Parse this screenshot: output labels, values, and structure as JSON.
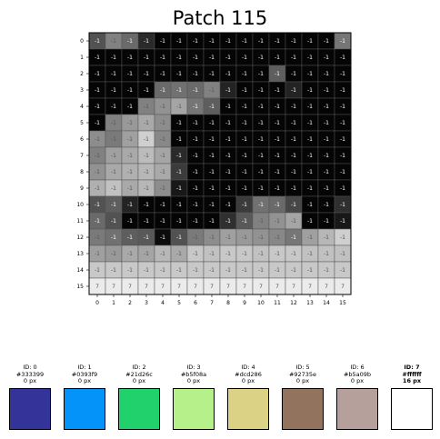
{
  "chart_data": {
    "type": "heatmap",
    "title": "Patch 115",
    "x_ticks": [
      "0",
      "1",
      "2",
      "3",
      "4",
      "5",
      "6",
      "7",
      "8",
      "9",
      "10",
      "11",
      "12",
      "13",
      "14",
      "15"
    ],
    "y_ticks": [
      "0",
      "1",
      "2",
      "3",
      "4",
      "5",
      "6",
      "7",
      "8",
      "9",
      "10",
      "11",
      "12",
      "13",
      "14",
      "15"
    ],
    "cell_labels": [
      [
        "-1",
        "-1",
        "-1",
        "-1",
        "-1",
        "-1",
        "-1",
        "-1",
        "-1",
        "-1",
        "-1",
        "-1",
        "-1",
        "-1",
        "-1",
        "-1"
      ],
      [
        "-1",
        "-1",
        "-1",
        "-1",
        "-1",
        "-1",
        "-1",
        "-1",
        "-1",
        "-1",
        "-1",
        "-1",
        "-1",
        "-1",
        "-1",
        "-1"
      ],
      [
        "-1",
        "-1",
        "-1",
        "-1",
        "-1",
        "-1",
        "-1",
        "-1",
        "-1",
        "-1",
        "-1",
        "-1",
        "-1",
        "-1",
        "-1",
        "-1"
      ],
      [
        "-1",
        "-1",
        "-1",
        "-1",
        "-1",
        "-1",
        "-1",
        "-1",
        "-1",
        "-1",
        "-1",
        "-1",
        "-1",
        "-1",
        "-1",
        "-1"
      ],
      [
        "-1",
        "-1",
        "-1",
        "-1",
        "-1",
        "-1",
        "-1",
        "-1",
        "-1",
        "-1",
        "-1",
        "-1",
        "-1",
        "-1",
        "-1",
        "-1"
      ],
      [
        "-1",
        "-1",
        "-1",
        "-1",
        "-1",
        "-1",
        "-1",
        "-1",
        "-1",
        "-1",
        "-1",
        "-1",
        "-1",
        "-1",
        "-1",
        "-1"
      ],
      [
        "-1",
        "-1",
        "-1",
        "-1",
        "-1",
        "-1",
        "-1",
        "-1",
        "-1",
        "-1",
        "-1",
        "-1",
        "-1",
        "-1",
        "-1",
        "-1"
      ],
      [
        "-1",
        "-1",
        "-1",
        "-1",
        "-1",
        "-1",
        "-1",
        "-1",
        "-1",
        "-1",
        "-1",
        "-1",
        "-1",
        "-1",
        "-1",
        "-1"
      ],
      [
        "-1",
        "-1",
        "-1",
        "-1",
        "-1",
        "-1",
        "-1",
        "-1",
        "-1",
        "-1",
        "-1",
        "-1",
        "-1",
        "-1",
        "-1",
        "-1"
      ],
      [
        "-1",
        "-1",
        "-1",
        "-1",
        "-1",
        "-1",
        "-1",
        "-1",
        "-1",
        "-1",
        "-1",
        "-1",
        "-1",
        "-1",
        "-1",
        "-1"
      ],
      [
        "-1",
        "-1",
        "-1",
        "-1",
        "-1",
        "-1",
        "-1",
        "-1",
        "-1",
        "-1",
        "-1",
        "-1",
        "-1",
        "-1",
        "-1",
        "-1"
      ],
      [
        "-1",
        "-1",
        "-1",
        "-1",
        "-1",
        "-1",
        "-1",
        "-1",
        "-1",
        "-1",
        "-1",
        "-1",
        "-1",
        "-1",
        "-1",
        "-1"
      ],
      [
        "-1",
        "-1",
        "-1",
        "-1",
        "-1",
        "-1",
        "-1",
        "-1",
        "-1",
        "-1",
        "-1",
        "-1",
        "-1",
        "-1",
        "-1",
        "-1"
      ],
      [
        "-1",
        "-1",
        "-1",
        "-1",
        "-1",
        "-1",
        "-1",
        "-1",
        "-1",
        "-1",
        "-1",
        "-1",
        "-1",
        "-1",
        "-1",
        "-1"
      ],
      [
        "-1",
        "-1",
        "-1",
        "-1",
        "-1",
        "-1",
        "-1",
        "-1",
        "-1",
        "-1",
        "-1",
        "-1",
        "-1",
        "-1",
        "-1",
        "-1"
      ],
      [
        "7",
        "7",
        "7",
        "7",
        "7",
        "7",
        "7",
        "7",
        "7",
        "7",
        "7",
        "7",
        "7",
        "7",
        "7",
        "7"
      ]
    ],
    "intensity": [
      [
        0.35,
        0.55,
        0.45,
        0.18,
        0.02,
        0.02,
        0.02,
        0.02,
        0.02,
        0.02,
        0.02,
        0.02,
        0.02,
        0.02,
        0.02,
        0.5
      ],
      [
        0.02,
        0.02,
        0.02,
        0.02,
        0.02,
        0.02,
        0.02,
        0.02,
        0.02,
        0.02,
        0.02,
        0.02,
        0.02,
        0.02,
        0.02,
        0.02
      ],
      [
        0.02,
        0.02,
        0.02,
        0.02,
        0.02,
        0.02,
        0.02,
        0.02,
        0.02,
        0.02,
        0.02,
        0.4,
        0.02,
        0.02,
        0.02,
        0.02
      ],
      [
        0.02,
        0.02,
        0.02,
        0.02,
        0.45,
        0.48,
        0.45,
        0.55,
        0.15,
        0.02,
        0.02,
        0.02,
        0.15,
        0.02,
        0.02,
        0.02
      ],
      [
        0.02,
        0.02,
        0.02,
        0.55,
        0.62,
        0.7,
        0.5,
        0.4,
        0.02,
        0.02,
        0.02,
        0.02,
        0.02,
        0.02,
        0.02,
        0.02
      ],
      [
        0.02,
        0.55,
        0.65,
        0.72,
        0.6,
        0.02,
        0.02,
        0.02,
        0.02,
        0.02,
        0.02,
        0.02,
        0.02,
        0.02,
        0.02,
        0.02
      ],
      [
        0.6,
        0.52,
        0.68,
        0.88,
        0.58,
        0.02,
        0.02,
        0.02,
        0.02,
        0.02,
        0.02,
        0.02,
        0.02,
        0.02,
        0.02,
        0.02
      ],
      [
        0.55,
        0.68,
        0.72,
        0.8,
        0.7,
        0.18,
        0.02,
        0.02,
        0.02,
        0.02,
        0.02,
        0.02,
        0.02,
        0.02,
        0.02,
        0.02
      ],
      [
        0.62,
        0.72,
        0.75,
        0.78,
        0.72,
        0.25,
        0.02,
        0.02,
        0.02,
        0.02,
        0.02,
        0.02,
        0.02,
        0.02,
        0.02,
        0.02
      ],
      [
        0.75,
        0.82,
        0.72,
        0.78,
        0.6,
        0.1,
        0.02,
        0.02,
        0.02,
        0.02,
        0.02,
        0.02,
        0.02,
        0.02,
        0.02,
        0.02
      ],
      [
        0.35,
        0.4,
        0.15,
        0.02,
        0.02,
        0.02,
        0.02,
        0.02,
        0.02,
        0.25,
        0.48,
        0.45,
        0.3,
        0.02,
        0.02,
        0.2
      ],
      [
        0.45,
        0.35,
        0.02,
        0.02,
        0.02,
        0.02,
        0.02,
        0.02,
        0.2,
        0.38,
        0.55,
        0.62,
        0.7,
        0.02,
        0.02,
        0.1
      ],
      [
        0.52,
        0.48,
        0.4,
        0.38,
        0.05,
        0.35,
        0.52,
        0.6,
        0.68,
        0.65,
        0.62,
        0.58,
        0.5,
        0.68,
        0.78,
        0.88
      ],
      [
        0.68,
        0.65,
        0.72,
        0.7,
        0.78,
        0.72,
        0.85,
        0.82,
        0.85,
        0.85,
        0.82,
        0.85,
        0.85,
        0.82,
        0.82,
        0.82
      ],
      [
        0.85,
        0.85,
        0.85,
        0.85,
        0.85,
        0.85,
        0.85,
        0.85,
        0.85,
        0.85,
        0.85,
        0.85,
        0.85,
        0.85,
        0.85,
        0.85
      ],
      [
        1.0,
        1.0,
        1.0,
        1.0,
        1.0,
        1.0,
        1.0,
        1.0,
        1.0,
        1.0,
        1.0,
        1.0,
        1.0,
        1.0,
        1.0,
        1.0
      ]
    ],
    "palette": [
      {
        "id": "ID: 0",
        "hex": "#333399",
        "px": "0 px",
        "color": "#333399",
        "bold": false
      },
      {
        "id": "ID: 1",
        "hex": "#0393f9",
        "px": "0 px",
        "color": "#0393f9",
        "bold": false
      },
      {
        "id": "ID: 2",
        "hex": "#21d26c",
        "px": "0 px",
        "color": "#21d26c",
        "bold": false
      },
      {
        "id": "ID: 3",
        "hex": "#b5f08a",
        "px": "0 px",
        "color": "#b5f08a",
        "bold": false
      },
      {
        "id": "ID: 4",
        "hex": "#dcd286",
        "px": "0 px",
        "color": "#dcd286",
        "bold": false
      },
      {
        "id": "ID: 5",
        "hex": "#92735e",
        "px": "0 px",
        "color": "#92735e",
        "bold": false
      },
      {
        "id": "ID: 6",
        "hex": "#b5a09b",
        "px": "0 px",
        "color": "#b5a09b",
        "bold": false
      },
      {
        "id": "ID: 7",
        "hex": "#ffffff",
        "px": "16 px",
        "color": "#ffffff",
        "bold": true
      }
    ]
  }
}
